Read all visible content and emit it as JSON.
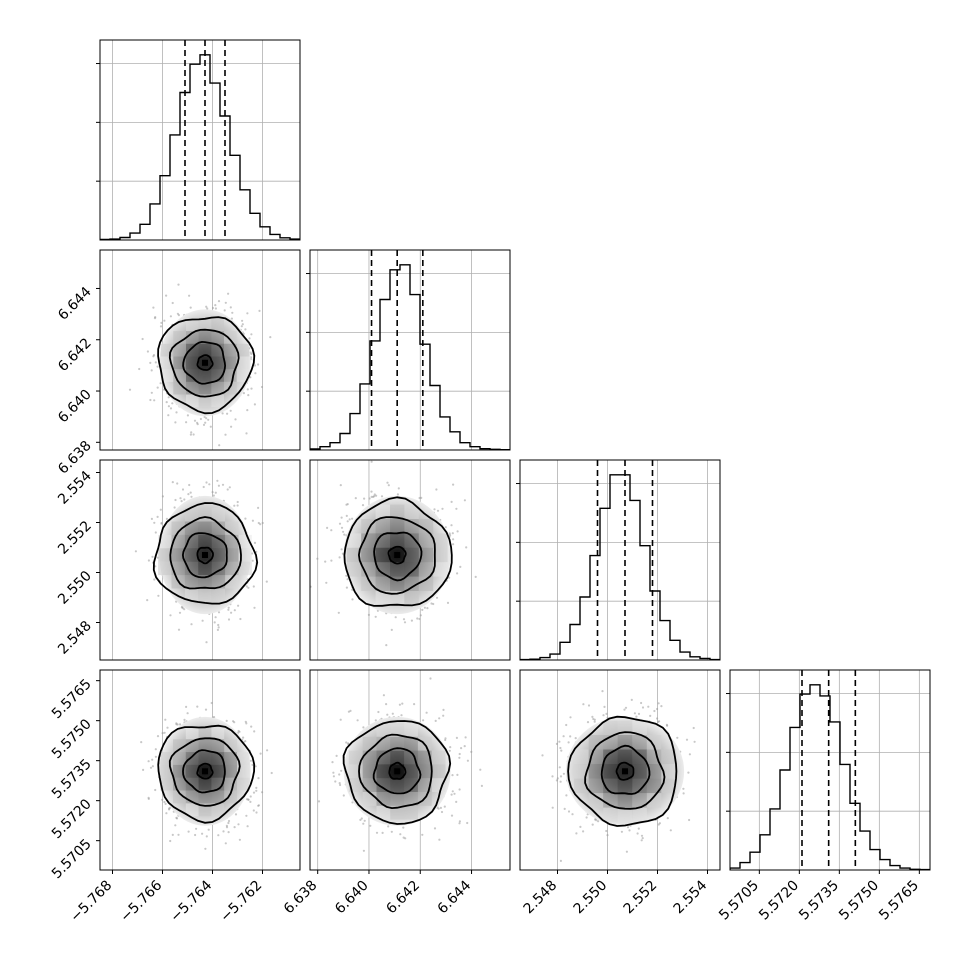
{
  "chart_data": {
    "type": "corner",
    "n_params": 4,
    "grid": true,
    "params": [
      {
        "mean": -5.7643,
        "sigma": 0.00085,
        "range": [
          -5.7685,
          -5.7605
        ],
        "ticks": [
          -5.768,
          -5.766,
          -5.764,
          -5.762
        ],
        "tick_labels": [
          "−5.768",
          "−5.766",
          "−5.764",
          "−5.762"
        ],
        "quantiles": [
          -5.7651,
          -5.7643,
          -5.7635
        ],
        "hist_counts": [
          2,
          3,
          8,
          22,
          50,
          115,
          205,
          335,
          470,
          560,
          590,
          500,
          395,
          270,
          160,
          85,
          42,
          18,
          7,
          3
        ]
      },
      {
        "mean": 6.6411,
        "sigma": 0.00097,
        "range": [
          6.6377,
          6.6455
        ],
        "ticks": [
          6.638,
          6.64,
          6.642,
          6.644
        ],
        "tick_labels": [
          "6.638",
          "6.640",
          "6.642",
          "6.644"
        ],
        "quantiles": [
          6.6401,
          6.6411,
          6.6421
        ],
        "hist_counts": [
          3,
          10,
          22,
          50,
          110,
          200,
          330,
          455,
          545,
          560,
          470,
          320,
          195,
          100,
          55,
          22,
          10,
          4,
          2,
          1
        ]
      },
      {
        "mean": 2.5507,
        "sigma": 0.0011,
        "range": [
          2.5465,
          2.5545
        ],
        "ticks": [
          2.548,
          2.55,
          2.552,
          2.554
        ],
        "tick_labels": [
          "2.548",
          "2.550",
          "2.552",
          "2.554"
        ],
        "quantiles": [
          2.5496,
          2.5507,
          2.5518
        ],
        "hist_counts": [
          1,
          2,
          6,
          15,
          45,
          90,
          160,
          265,
          385,
          470,
          470,
          405,
          290,
          175,
          100,
          50,
          20,
          8,
          4,
          1
        ]
      },
      {
        "mean": 5.5731,
        "sigma": 0.00095,
        "range": [
          5.5694,
          5.5769
        ],
        "ticks": [
          5.5705,
          5.572,
          5.5735,
          5.575,
          5.5765
        ],
        "tick_labels": [
          "5.5705",
          "5.5720",
          "5.5735",
          "5.5750",
          "5.5765"
        ],
        "quantiles": [
          5.5721,
          5.5731,
          5.5741
        ],
        "hist_counts": [
          5,
          20,
          48,
          95,
          165,
          270,
          385,
          475,
          500,
          470,
          400,
          285,
          180,
          105,
          55,
          28,
          12,
          5,
          2,
          1
        ]
      }
    ]
  }
}
